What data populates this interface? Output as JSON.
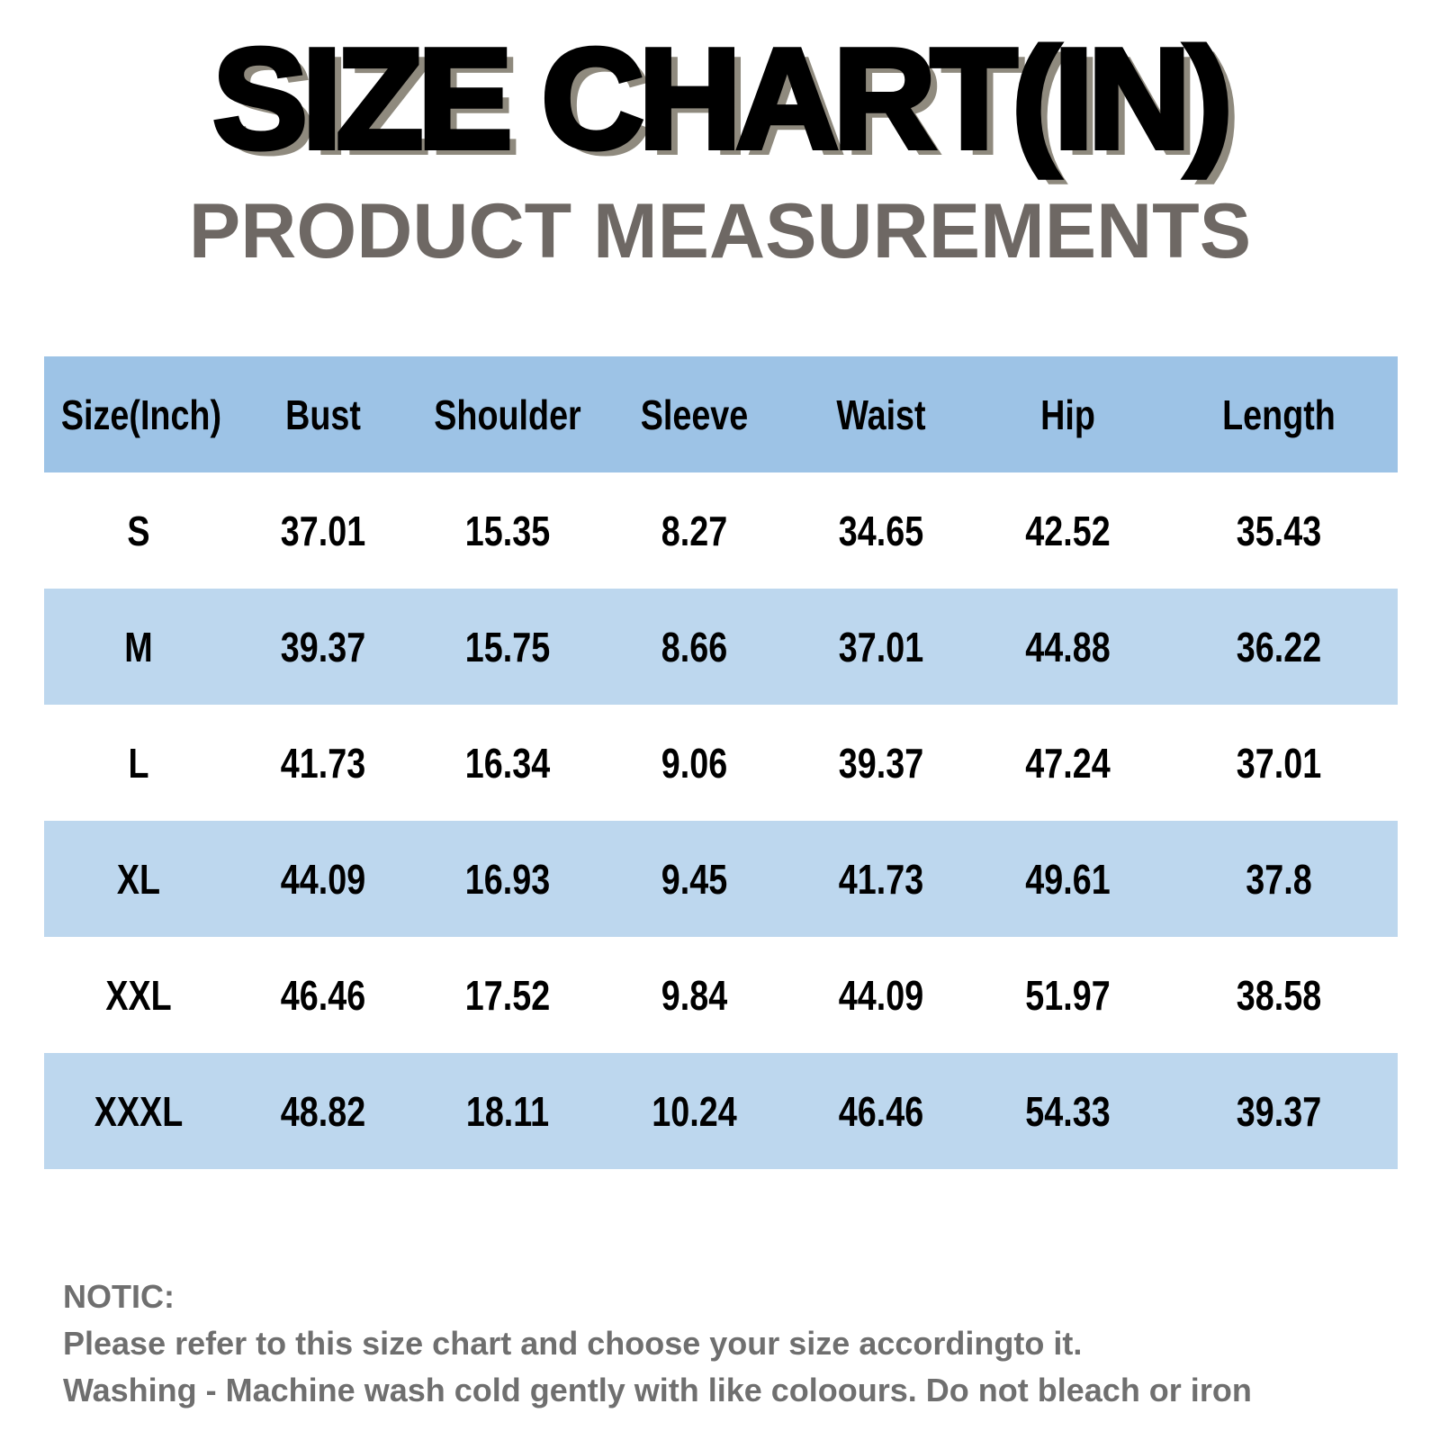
{
  "header": {
    "title": "SIZE CHART(IN)",
    "subtitle": "PRODUCT MEASUREMENTS"
  },
  "table": {
    "columns": [
      "Size(Inch)",
      "Bust",
      "Shoulder",
      "Sleeve",
      "Waist",
      "Hip",
      "Length"
    ],
    "rows": [
      [
        "S",
        "37.01",
        "15.35",
        "8.27",
        "34.65",
        "42.52",
        "35.43"
      ],
      [
        "M",
        "39.37",
        "15.75",
        "8.66",
        "37.01",
        "44.88",
        "36.22"
      ],
      [
        "L",
        "41.73",
        "16.34",
        "9.06",
        "39.37",
        "47.24",
        "37.01"
      ],
      [
        "XL",
        "44.09",
        "16.93",
        "9.45",
        "41.73",
        "49.61",
        "37.8"
      ],
      [
        "XXL",
        "46.46",
        "17.52",
        "9.84",
        "44.09",
        "51.97",
        "38.58"
      ],
      [
        "XXXL",
        "48.82",
        "18.11",
        "10.24",
        "46.46",
        "54.33",
        "39.37"
      ]
    ]
  },
  "notice": {
    "label": "NOTIC:",
    "lines": [
      "Please refer to this size chart and choose your size accordingto it.",
      "Washing - Machine wash cold gently with like coloours. Do not bleach or iron"
    ]
  }
}
